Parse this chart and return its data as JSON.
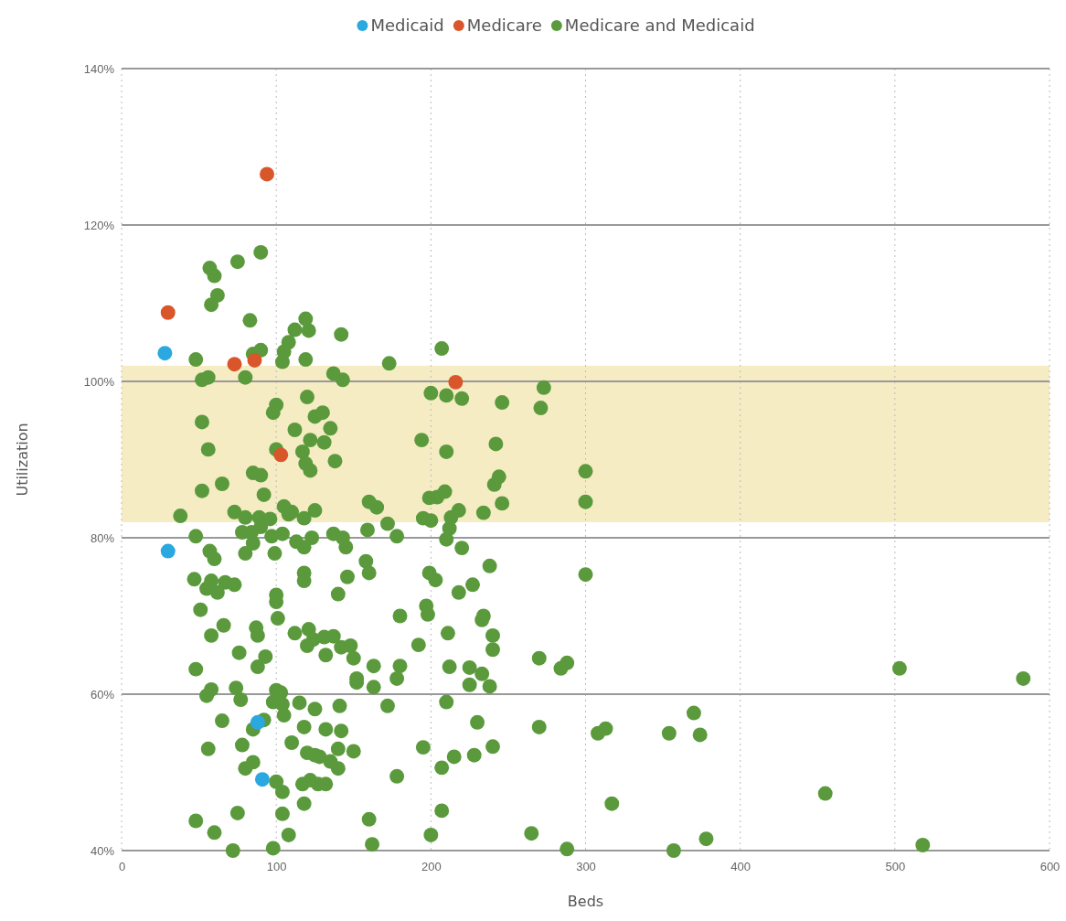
{
  "chart_data": {
    "type": "scatter",
    "xlabel": "Beds",
    "ylabel": "Utilization",
    "xlim": [
      0,
      600
    ],
    "xticks": [
      0,
      100,
      200,
      300,
      400,
      500,
      600
    ],
    "ylim": [
      40,
      140
    ],
    "yticks": [
      {
        "value": 40,
        "label": "40%"
      },
      {
        "value": 60,
        "label": "60%"
      },
      {
        "value": 80,
        "label": "80%"
      },
      {
        "value": 100,
        "label": "100%"
      },
      {
        "value": 120,
        "label": "120%"
      },
      {
        "value": 140,
        "label": "140%"
      }
    ],
    "grid": true,
    "legend": "top",
    "marker": "circle",
    "bands": [
      {
        "axis": "y",
        "from": 82,
        "to": 102,
        "color": "#f5ecc4"
      }
    ],
    "series": [
      {
        "name": "Medicare and Medicaid",
        "color": "#5b9a3c",
        "x": [
          90,
          75,
          57,
          60,
          62,
          58,
          83,
          119,
          112,
          121,
          142,
          108,
          105,
          90,
          85,
          207,
          48,
          119,
          173,
          104,
          80,
          52,
          56,
          137,
          143,
          273,
          200,
          210,
          220,
          120,
          246,
          271,
          100,
          98,
          125,
          130,
          52,
          112,
          135,
          122,
          131,
          194,
          210,
          242,
          100,
          117,
          56,
          119,
          138,
          300,
          85,
          90,
          122,
          244,
          241,
          65,
          52,
          199,
          204,
          209,
          92,
          246,
          300,
          160,
          165,
          105,
          110,
          125,
          38,
          73,
          80,
          89,
          96,
          108,
          118,
          195,
          200,
          213,
          218,
          234,
          172,
          159,
          212,
          90,
          84,
          97,
          104,
          123,
          178,
          137,
          143,
          48,
          210,
          78,
          113,
          118,
          145,
          80,
          85,
          99,
          220,
          57,
          60,
          158,
          160,
          199,
          300,
          118,
          118,
          146,
          203,
          227,
          238,
          47,
          58,
          67,
          73,
          55,
          62,
          100,
          140,
          218,
          100,
          197,
          51,
          198,
          234,
          233,
          180,
          101,
          66,
          87,
          88,
          58,
          112,
          121,
          124,
          131,
          137,
          120,
          142,
          148,
          192,
          211,
          240,
          240,
          76,
          132,
          93,
          150,
          270,
          288,
          284,
          48,
          88,
          163,
          180,
          212,
          225,
          233,
          225,
          178,
          152,
          163,
          238,
          58,
          74,
          100,
          103,
          98,
          104,
          115,
          125,
          55,
          77,
          210,
          141,
          172,
          105,
          370,
          65,
          92,
          118,
          230,
          85,
          132,
          142,
          270,
          308,
          313,
          354,
          374,
          78,
          110,
          120,
          125,
          128,
          135,
          140,
          150,
          178,
          195,
          228,
          215,
          240,
          56,
          85,
          80,
          100,
          117,
          122,
          127,
          132,
          207,
          118,
          104,
          75,
          207,
          160,
          455,
          317,
          48,
          60,
          108,
          200,
          265,
          162,
          378,
          518,
          72,
          98,
          288,
          357,
          503,
          583,
          140,
          152,
          104
        ],
        "values": [
          116.5,
          115.3,
          114.5,
          113.5,
          111,
          109.8,
          107.8,
          108,
          106.6,
          106.5,
          106,
          105,
          103.8,
          104,
          103.5,
          104.2,
          102.8,
          102.8,
          102.3,
          102.5,
          100.5,
          100.2,
          100.5,
          101,
          100.2,
          99.2,
          98.5,
          98.2,
          97.8,
          98,
          97.3,
          96.6,
          97,
          96,
          95.5,
          96,
          94.8,
          93.8,
          94,
          92.5,
          92.2,
          92.5,
          91,
          92,
          91.3,
          91,
          91.3,
          89.5,
          89.8,
          88.5,
          88.3,
          88,
          88.6,
          87.8,
          86.8,
          86.9,
          86,
          85.1,
          85.2,
          85.9,
          85.5,
          84.4,
          84.6,
          84.6,
          83.9,
          84,
          83.3,
          83.5,
          82.8,
          83.3,
          82.6,
          82.6,
          82.4,
          83,
          82.5,
          82.5,
          82.2,
          82.6,
          83.5,
          83.2,
          81.8,
          81,
          81.2,
          81.4,
          80.7,
          80.2,
          80.5,
          80,
          80.2,
          80.5,
          80,
          80.2,
          79.8,
          80.7,
          79.5,
          78.8,
          78.8,
          78,
          79.3,
          78,
          78.7,
          78.3,
          77.3,
          77,
          75.5,
          75.5,
          75.3,
          75.5,
          74.5,
          75,
          74.6,
          74,
          76.4,
          74.7,
          74.5,
          74.3,
          74,
          73.5,
          73,
          72.7,
          72.8,
          73,
          71.8,
          71.3,
          70.8,
          70.2,
          70,
          69.5,
          70,
          69.7,
          68.8,
          68.5,
          67.5,
          67.5,
          67.8,
          68.3,
          67,
          67.3,
          67.4,
          66.2,
          66,
          66.2,
          66.3,
          67.8,
          67.5,
          65.7,
          65.3,
          65,
          64.8,
          64.6,
          64.6,
          64,
          63.3,
          63.2,
          63.5,
          63.6,
          63.6,
          63.5,
          63.4,
          62.6,
          61.2,
          62,
          62,
          60.9,
          61,
          60.6,
          60.8,
          60.5,
          60.2,
          59,
          58.7,
          58.9,
          58.1,
          59.8,
          59.3,
          59,
          58.5,
          58.5,
          57.3,
          57.6,
          56.6,
          56.7,
          55.8,
          56.4,
          55.5,
          55.5,
          55.3,
          55.8,
          55,
          55.6,
          55,
          54.8,
          53.5,
          53.8,
          52.5,
          52.2,
          52,
          51.4,
          53,
          52.7,
          49.5,
          53.2,
          52.2,
          52,
          53.3,
          53,
          51.3,
          50.5,
          48.8,
          48.5,
          49,
          48.5,
          48.5,
          50.6,
          46,
          44.7,
          44.8,
          45.1,
          44,
          47.3,
          46,
          43.8,
          42.3,
          42,
          42,
          42.2,
          40.8,
          41.5,
          40.7,
          40,
          40.3,
          40.2,
          40,
          63.3,
          62,
          50.5,
          61.5,
          47.5
        ]
      },
      {
        "name": "Medicaid",
        "color": "#2aa8df",
        "x": [
          28,
          30,
          88,
          91
        ],
        "values": [
          103.6,
          78.3,
          56.4,
          49.1
        ]
      },
      {
        "name": "Medicare",
        "color": "#d9552a",
        "x": [
          94,
          30,
          73,
          86,
          216,
          103
        ],
        "values": [
          126.5,
          108.8,
          102.2,
          102.7,
          99.9,
          90.6
        ]
      }
    ]
  }
}
